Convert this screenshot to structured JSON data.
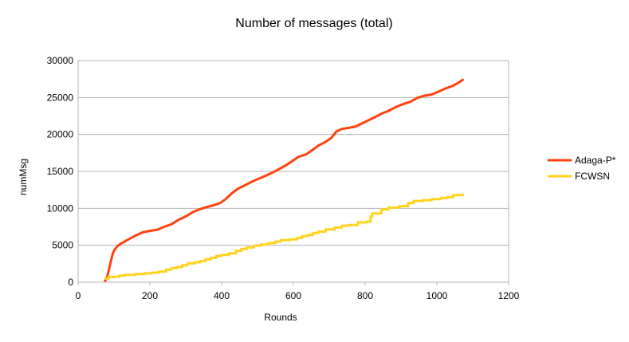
{
  "chart_data": {
    "type": "line",
    "title": "Number of messages (total)",
    "xlabel": "Rounds",
    "ylabel": "numMsg",
    "xlim": [
      0,
      1200
    ],
    "ylim": [
      0,
      30000
    ],
    "x_ticks": [
      0,
      200,
      400,
      600,
      800,
      1000,
      1200
    ],
    "y_ticks": [
      0,
      5000,
      10000,
      15000,
      20000,
      25000,
      30000
    ],
    "grid": "horizontal",
    "legend_position": "right",
    "series": [
      {
        "name": "Adaga-P*",
        "color": "#ff420e",
        "step": false,
        "points": [
          [
            75,
            150
          ],
          [
            80,
            600
          ],
          [
            85,
            1500
          ],
          [
            90,
            2600
          ],
          [
            95,
            3600
          ],
          [
            100,
            4300
          ],
          [
            110,
            4900
          ],
          [
            120,
            5250
          ],
          [
            140,
            5800
          ],
          [
            160,
            6300
          ],
          [
            180,
            6750
          ],
          [
            200,
            6950
          ],
          [
            220,
            7100
          ],
          [
            240,
            7500
          ],
          [
            260,
            7850
          ],
          [
            280,
            8450
          ],
          [
            300,
            8900
          ],
          [
            320,
            9500
          ],
          [
            340,
            9900
          ],
          [
            360,
            10200
          ],
          [
            380,
            10450
          ],
          [
            395,
            10700
          ],
          [
            410,
            11200
          ],
          [
            430,
            12100
          ],
          [
            445,
            12650
          ],
          [
            460,
            13000
          ],
          [
            480,
            13500
          ],
          [
            500,
            13950
          ],
          [
            520,
            14350
          ],
          [
            540,
            14800
          ],
          [
            560,
            15300
          ],
          [
            580,
            15850
          ],
          [
            600,
            16500
          ],
          [
            615,
            17000
          ],
          [
            635,
            17300
          ],
          [
            650,
            17800
          ],
          [
            670,
            18500
          ],
          [
            690,
            19000
          ],
          [
            705,
            19500
          ],
          [
            720,
            20400
          ],
          [
            735,
            20750
          ],
          [
            755,
            20900
          ],
          [
            775,
            21100
          ],
          [
            800,
            21700
          ],
          [
            825,
            22300
          ],
          [
            845,
            22800
          ],
          [
            865,
            23200
          ],
          [
            885,
            23700
          ],
          [
            905,
            24100
          ],
          [
            925,
            24400
          ],
          [
            945,
            24950
          ],
          [
            965,
            25250
          ],
          [
            985,
            25400
          ],
          [
            1005,
            25800
          ],
          [
            1025,
            26250
          ],
          [
            1045,
            26600
          ],
          [
            1060,
            27000
          ],
          [
            1072,
            27400
          ]
        ]
      },
      {
        "name": "FCWSN",
        "color": "#ffd320",
        "step": true,
        "points": [
          [
            75,
            500
          ],
          [
            85,
            700
          ],
          [
            100,
            750
          ],
          [
            115,
            900
          ],
          [
            130,
            1000
          ],
          [
            160,
            1100
          ],
          [
            185,
            1200
          ],
          [
            205,
            1300
          ],
          [
            225,
            1450
          ],
          [
            245,
            1700
          ],
          [
            260,
            1900
          ],
          [
            275,
            2050
          ],
          [
            290,
            2300
          ],
          [
            305,
            2550
          ],
          [
            325,
            2700
          ],
          [
            340,
            2850
          ],
          [
            355,
            3100
          ],
          [
            370,
            3300
          ],
          [
            385,
            3550
          ],
          [
            400,
            3700
          ],
          [
            420,
            3900
          ],
          [
            440,
            4250
          ],
          [
            455,
            4500
          ],
          [
            470,
            4700
          ],
          [
            490,
            4950
          ],
          [
            510,
            5100
          ],
          [
            530,
            5300
          ],
          [
            550,
            5500
          ],
          [
            565,
            5700
          ],
          [
            590,
            5800
          ],
          [
            610,
            6000
          ],
          [
            625,
            6250
          ],
          [
            640,
            6400
          ],
          [
            655,
            6650
          ],
          [
            670,
            6850
          ],
          [
            690,
            7150
          ],
          [
            715,
            7400
          ],
          [
            735,
            7650
          ],
          [
            755,
            7750
          ],
          [
            780,
            8100
          ],
          [
            805,
            8200
          ],
          [
            815,
            8900
          ],
          [
            820,
            9300
          ],
          [
            845,
            9850
          ],
          [
            865,
            10100
          ],
          [
            895,
            10300
          ],
          [
            920,
            10700
          ],
          [
            935,
            11000
          ],
          [
            960,
            11100
          ],
          [
            985,
            11250
          ],
          [
            1010,
            11400
          ],
          [
            1030,
            11500
          ],
          [
            1045,
            11800
          ],
          [
            1072,
            11850
          ]
        ]
      }
    ]
  }
}
